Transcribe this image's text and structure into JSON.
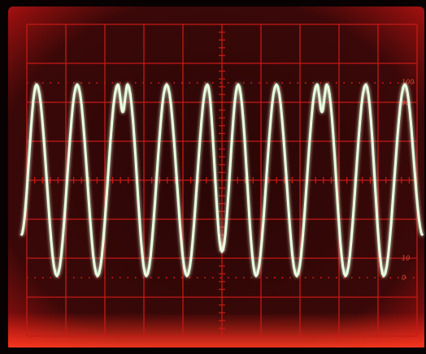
{
  "graticule_labels": [
    "100",
    "90",
    "10",
    "0"
  ]
}
